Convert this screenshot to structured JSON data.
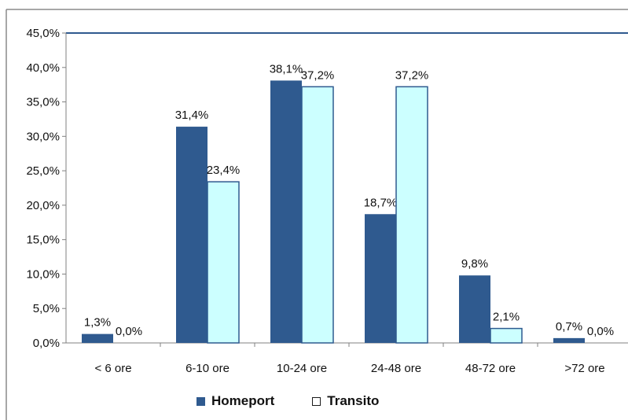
{
  "chart_data": {
    "type": "bar",
    "categories": [
      "< 6 ore",
      "6-10 ore",
      "10-24 ore",
      "24-48 ore",
      "48-72 ore",
      ">72 ore"
    ],
    "series": [
      {
        "name": "Homeport",
        "values": [
          1.3,
          31.4,
          38.1,
          18.7,
          9.8,
          0.7
        ],
        "labels": [
          "1,3%",
          "31,4%",
          "38,1%",
          "18,7%",
          "9,8%",
          "0,7%"
        ],
        "color": "#2f5a8f"
      },
      {
        "name": "Transito",
        "values": [
          0.0,
          23.4,
          37.2,
          37.2,
          2.1,
          0.0
        ],
        "labels": [
          "0,0%",
          "23,4%",
          "37,2%",
          "37,2%",
          "2,1%",
          "0,0%"
        ],
        "color": "#ccffff",
        "border": "#2f5a8f"
      }
    ],
    "ylim": [
      0,
      45
    ],
    "yticks": [
      0,
      5,
      10,
      15,
      20,
      25,
      30,
      35,
      40,
      45
    ],
    "ytick_labels": [
      "0,0%",
      "5,0%",
      "10,0%",
      "15,0%",
      "20,0%",
      "25,0%",
      "30,0%",
      "35,0%",
      "40,0%",
      "45,0%"
    ],
    "grid": false,
    "legend_position": "bottom",
    "title": "",
    "xlabel": "",
    "ylabel": ""
  }
}
